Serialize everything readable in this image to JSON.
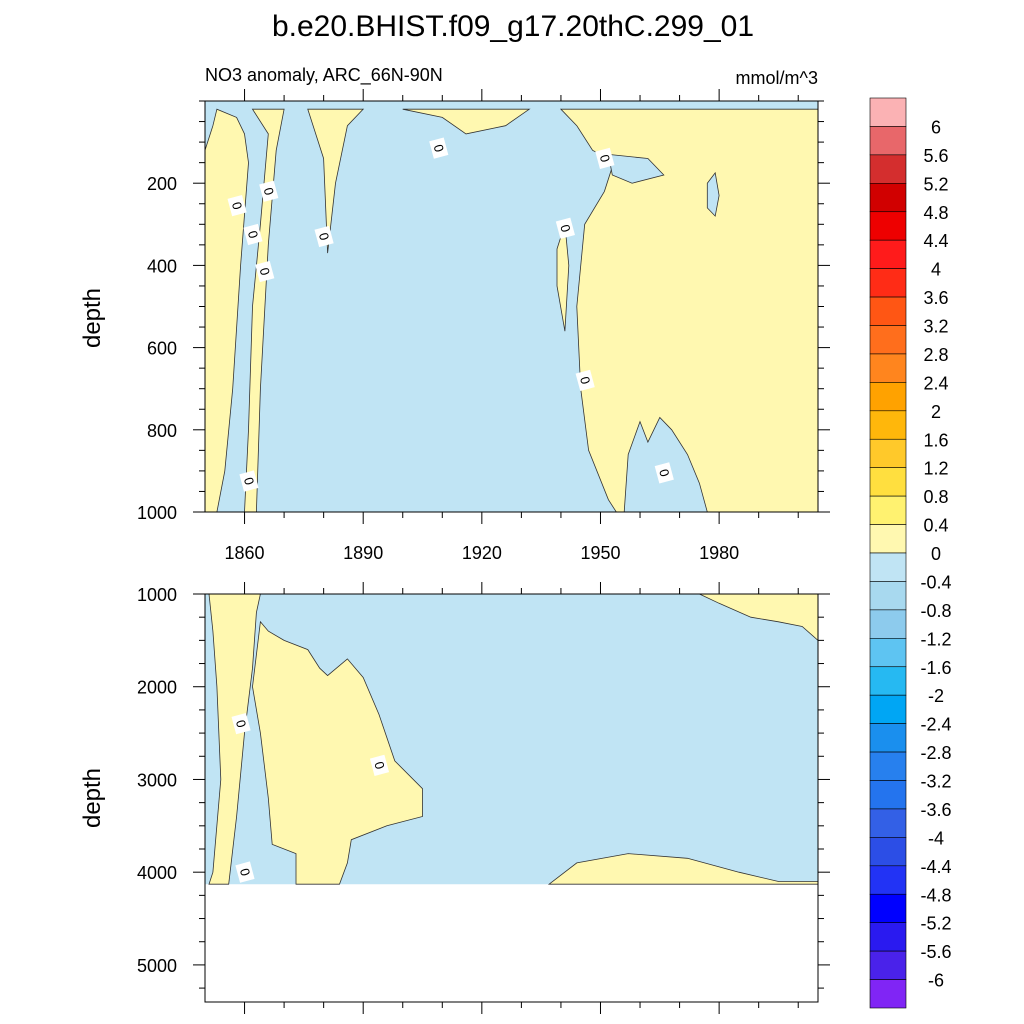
{
  "title": "b.e20.BHIST.f09_g17.20thC.299_01",
  "colors": {
    "positive_fill": "#fff8b0",
    "negative_fill": "#c0e4f4",
    "contour_line": "#333333",
    "missing": "#ffffff"
  },
  "chart_data": [
    {
      "type": "heatmap",
      "panel": "upper",
      "title": "NO3 anomaly, ARC_66N-90N",
      "units": "mmol/m^3",
      "xlabel": "",
      "ylabel": "depth",
      "xlim": [
        1850,
        2005
      ],
      "ylim": [
        1000,
        0
      ],
      "x_ticks": [
        1860,
        1890,
        1920,
        1950,
        1980
      ],
      "y_ticks": [
        200,
        400,
        600,
        800,
        1000
      ],
      "contour_label": "0",
      "contour_label_positions": [
        {
          "x": 1858,
          "y": 255
        },
        {
          "x": 1866,
          "y": 220
        },
        {
          "x": 1862,
          "y": 325
        },
        {
          "x": 1865,
          "y": 415
        },
        {
          "x": 1880,
          "y": 330
        },
        {
          "x": 1909,
          "y": 115
        },
        {
          "x": 1951,
          "y": 140
        },
        {
          "x": 1941,
          "y": 310
        },
        {
          "x": 1946,
          "y": 680
        },
        {
          "x": 1966,
          "y": 905
        },
        {
          "x": 1861,
          "y": 925
        }
      ],
      "positive_regions": [
        [
          [
            1850,
            120
          ],
          [
            1852,
            60
          ],
          [
            1853,
            20
          ],
          [
            1858,
            40
          ],
          [
            1860,
            80
          ],
          [
            1861,
            150
          ],
          [
            1859,
            400
          ],
          [
            1857,
            700
          ],
          [
            1855,
            900
          ],
          [
            1853,
            1000
          ],
          [
            1850,
            1000
          ]
        ],
        [
          [
            1862,
            20
          ],
          [
            1866,
            80
          ],
          [
            1864,
            300
          ],
          [
            1862,
            500
          ],
          [
            1861,
            800
          ],
          [
            1860,
            1000
          ],
          [
            1863,
            1000
          ],
          [
            1864,
            700
          ],
          [
            1866,
            350
          ],
          [
            1868,
            120
          ],
          [
            1870,
            20
          ]
        ],
        [
          [
            1876,
            20
          ],
          [
            1880,
            140
          ],
          [
            1881,
            370
          ],
          [
            1883,
            200
          ],
          [
            1886,
            60
          ],
          [
            1890,
            20
          ]
        ],
        [
          [
            1900,
            20
          ],
          [
            1910,
            40
          ],
          [
            1916,
            80
          ],
          [
            1926,
            60
          ],
          [
            1932,
            20
          ]
        ],
        [
          [
            1940,
            20
          ],
          [
            1944,
            60
          ],
          [
            1948,
            120
          ],
          [
            1950,
            130
          ],
          [
            1953,
            160
          ],
          [
            1951,
            220
          ],
          [
            1946,
            300
          ],
          [
            1944,
            500
          ],
          [
            1945,
            700
          ],
          [
            1947,
            850
          ],
          [
            1952,
            970
          ],
          [
            1954,
            1000
          ],
          [
            2005,
            1000
          ],
          [
            2005,
            20
          ]
        ],
        [
          [
            1939,
            360
          ],
          [
            1941,
            300
          ],
          [
            1942,
            400
          ],
          [
            1941,
            560
          ],
          [
            1939,
            450
          ]
        ]
      ],
      "negative_regions_in_positive": [
        [
          [
            1952,
            130
          ],
          [
            1962,
            140
          ],
          [
            1966,
            180
          ],
          [
            1958,
            200
          ],
          [
            1953,
            180
          ]
        ],
        [
          [
            1956,
            1000
          ],
          [
            1957,
            860
          ],
          [
            1960,
            780
          ],
          [
            1962,
            830
          ],
          [
            1965,
            770
          ],
          [
            1968,
            800
          ],
          [
            1972,
            860
          ],
          [
            1975,
            930
          ],
          [
            1977,
            1000
          ]
        ],
        [
          [
            1977,
            200
          ],
          [
            1979,
            175
          ],
          [
            1980,
            230
          ],
          [
            1979,
            280
          ],
          [
            1977,
            260
          ]
        ]
      ]
    },
    {
      "type": "heatmap",
      "panel": "lower",
      "title": "",
      "xlabel": "",
      "ylabel": "depth",
      "xlim": [
        1850,
        2005
      ],
      "ylim": [
        5400,
        1000
      ],
      "y_ticks": [
        1000,
        2000,
        3000,
        4000,
        5000
      ],
      "missing_below_depth": 4130,
      "contour_label": "0",
      "contour_label_positions": [
        {
          "x": 1859,
          "y": 2400
        },
        {
          "x": 1894,
          "y": 2850
        },
        {
          "x": 1860,
          "y": 4000
        }
      ],
      "positive_regions": [
        [
          [
            1851,
            1000
          ],
          [
            1852,
            1400
          ],
          [
            1853,
            2000
          ],
          [
            1854,
            3000
          ],
          [
            1852,
            4000
          ],
          [
            1851,
            4130
          ],
          [
            1856,
            4130
          ],
          [
            1858,
            3400
          ],
          [
            1860,
            2500
          ],
          [
            1862,
            1800
          ],
          [
            1863,
            1200
          ],
          [
            1864,
            1000
          ]
        ],
        [
          [
            1864,
            1300
          ],
          [
            1866,
            1400
          ],
          [
            1870,
            1500
          ],
          [
            1876,
            1600
          ],
          [
            1879,
            1800
          ],
          [
            1881,
            1880
          ],
          [
            1886,
            1700
          ],
          [
            1890,
            1900
          ],
          [
            1894,
            2300
          ],
          [
            1898,
            2800
          ],
          [
            1905,
            3100
          ],
          [
            1905,
            3400
          ],
          [
            1896,
            3500
          ],
          [
            1887,
            3650
          ],
          [
            1886,
            3900
          ],
          [
            1884,
            4130
          ],
          [
            1873,
            4130
          ],
          [
            1873,
            3800
          ],
          [
            1867,
            3700
          ],
          [
            1866,
            3200
          ],
          [
            1864,
            2500
          ],
          [
            1862,
            2000
          ]
        ],
        [
          [
            1937,
            4130
          ],
          [
            1944,
            3900
          ],
          [
            1957,
            3800
          ],
          [
            1972,
            3850
          ],
          [
            1985,
            4000
          ],
          [
            1995,
            4100
          ],
          [
            2005,
            4100
          ],
          [
            2005,
            4130
          ]
        ],
        [
          [
            1975,
            1000
          ],
          [
            1980,
            1100
          ],
          [
            1988,
            1250
          ],
          [
            1995,
            1300
          ],
          [
            2001,
            1350
          ],
          [
            2005,
            1500
          ],
          [
            2005,
            1000
          ]
        ]
      ]
    }
  ],
  "colorbar": {
    "labels": [
      "6",
      "5.6",
      "5.2",
      "4.8",
      "4.4",
      "4",
      "3.6",
      "3.2",
      "2.8",
      "2.4",
      "2",
      "1.6",
      "1.2",
      "0.8",
      "0.4",
      "0",
      "-0.4",
      "-0.8",
      "-1.2",
      "-1.6",
      "-2",
      "-2.4",
      "-2.8",
      "-3.2",
      "-3.6",
      "-4",
      "-4.4",
      "-4.8",
      "-5.2",
      "-5.6",
      "-6"
    ],
    "colors": [
      "#fbb2b4",
      "#e8676a",
      "#d42e2e",
      "#d10000",
      "#ee0000",
      "#ff1b1b",
      "#ff2c16",
      "#ff5614",
      "#ff6e1c",
      "#ff851e",
      "#ffa200",
      "#ffb70b",
      "#ffc92a",
      "#ffdf3f",
      "#fff270",
      "#fff8b0",
      "#c0e4f4",
      "#a8d9ef",
      "#8dcbed",
      "#5ec4f2",
      "#26b9f2",
      "#00a6f4",
      "#1a8fee",
      "#2780ee",
      "#2474ee",
      "#3360e6",
      "#2c4ee6",
      "#2233f5",
      "#0000ff",
      "#2a1af0",
      "#4a22ea",
      "#8025f5"
    ]
  }
}
